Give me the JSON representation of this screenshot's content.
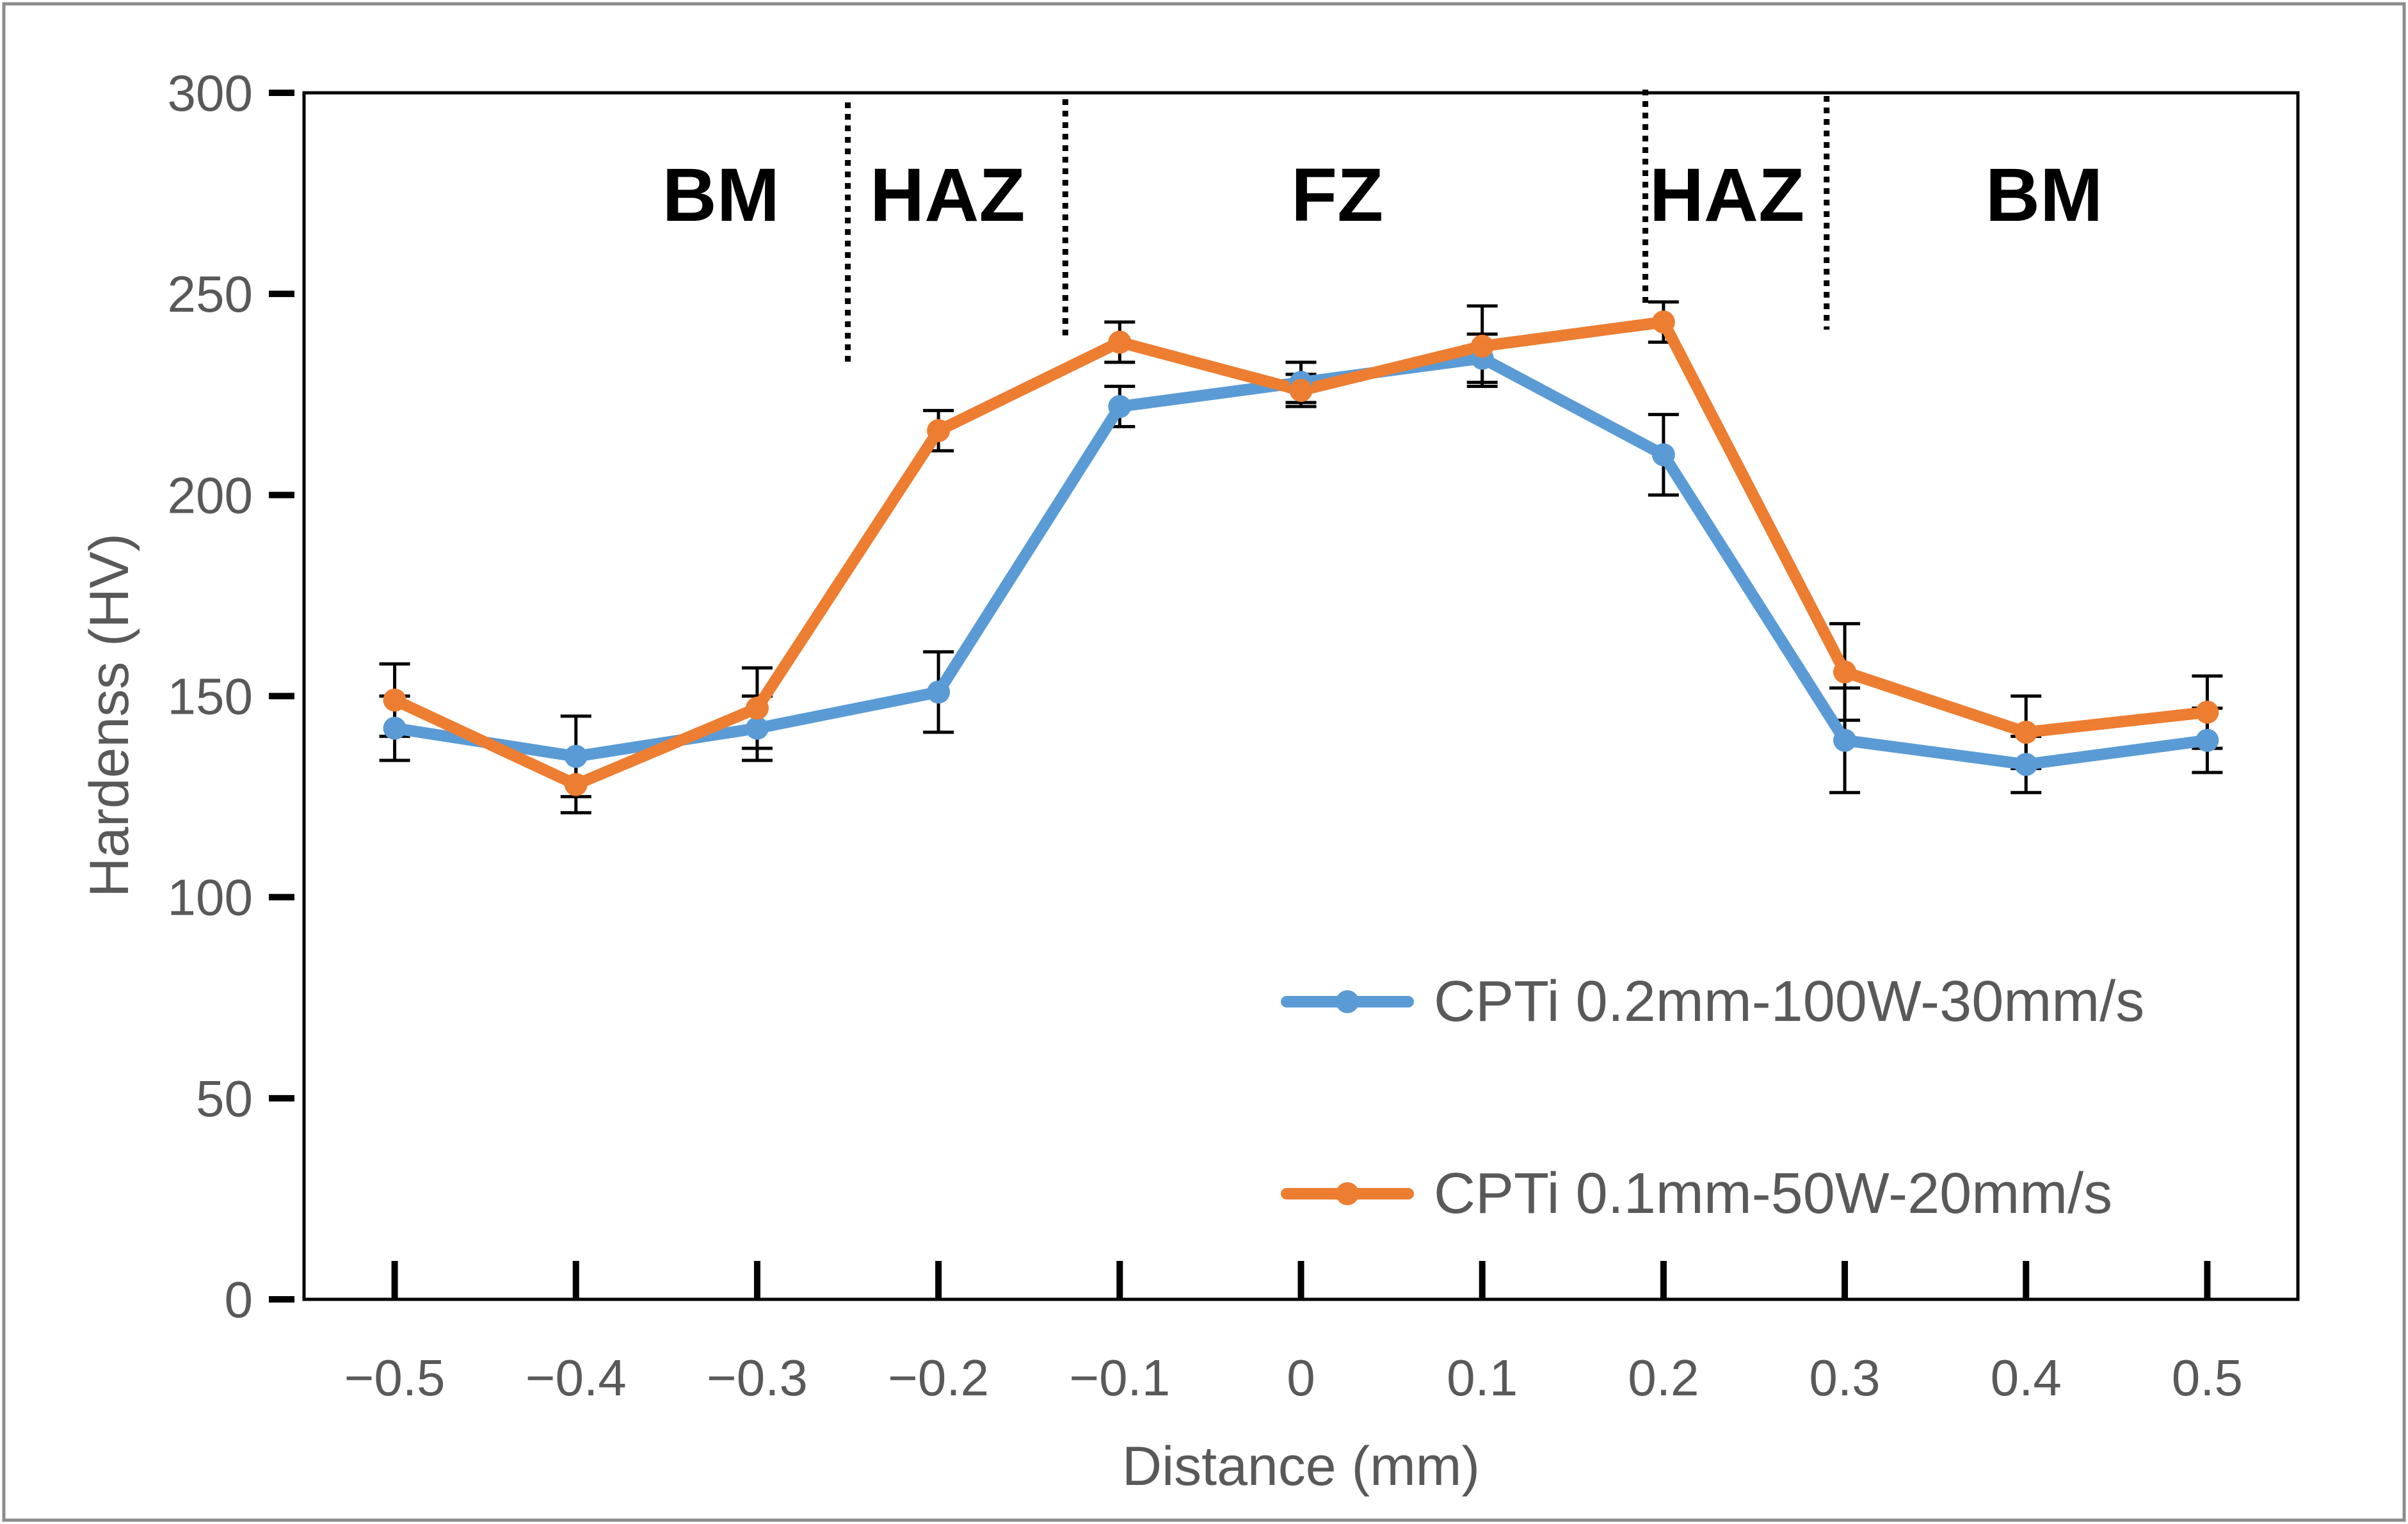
{
  "chart_data": {
    "type": "line",
    "title": "",
    "xlabel": "Distance (mm)",
    "ylabel": "Hardenss (HV)",
    "xlim": [
      -0.55,
      0.55
    ],
    "ylim": [
      0,
      300
    ],
    "x": [
      -0.5,
      -0.4,
      -0.3,
      -0.2,
      -0.1,
      0,
      0.1,
      0.2,
      0.3,
      0.4,
      0.5
    ],
    "x_tick_labels": [
      "−0.5",
      "−0.4",
      "−0.3",
      "−0.2",
      "−0.1",
      "0",
      "0.1",
      "0.2",
      "0.3",
      "0.4",
      "0.5"
    ],
    "y_ticks": [
      0,
      50,
      100,
      150,
      200,
      250,
      300
    ],
    "y_tick_labels": [
      "0",
      "50",
      "100",
      "150",
      "200",
      "250",
      "300"
    ],
    "grid": false,
    "legend_position": "bottom-right",
    "series": [
      {
        "name": "CPTi 0.2mm-100W-30mm/s",
        "color": "#5B9BD5",
        "values": [
          142,
          135,
          142,
          151,
          222,
          228,
          234,
          210,
          139,
          133,
          139
        ],
        "error": [
          8,
          10,
          8,
          10,
          5,
          5,
          6,
          10,
          13,
          7,
          8
        ]
      },
      {
        "name": "CPTi 0.1mm-50W-20mm/s",
        "color": "#ED7D31",
        "values": [
          149,
          128,
          147,
          216,
          238,
          226,
          237,
          243,
          156,
          141,
          146
        ],
        "error": [
          9,
          7,
          10,
          5,
          5,
          4,
          10,
          5,
          12,
          9,
          9
        ]
      }
    ],
    "boundaries": [
      -0.25,
      -0.13,
      0.19,
      0.29
    ],
    "region_labels": [
      {
        "text": "BM",
        "x": -0.32
      },
      {
        "text": "HAZ",
        "x": -0.195
      },
      {
        "text": "FZ",
        "x": 0.02
      },
      {
        "text": "HAZ",
        "x": 0.235
      },
      {
        "text": "BM",
        "x": 0.41
      }
    ]
  }
}
